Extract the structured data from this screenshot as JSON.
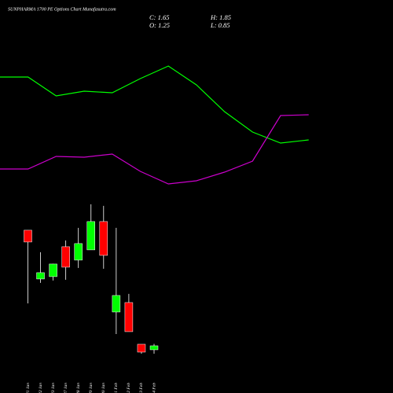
{
  "chart_data": [
    {
      "type": "line",
      "title": "SUNPHARMA 1700 PE Options Chart Munafasutra.com",
      "summary": [
        "C: 1.65",
        "H: 1.85",
        "O: 1.25",
        "L: 0.85"
      ],
      "categories": [
        null,
        null,
        null,
        null,
        null,
        null,
        null,
        null,
        null,
        null,
        null,
        null
      ],
      "ylim": [
        0,
        100
      ],
      "series": [
        {
          "color": "#00ff00",
          "values": [
            60.8,
            60.8,
            51.2,
            53.6,
            52.8,
            60,
            66.4,
            56.8,
            43.2,
            32.8,
            27.2,
            28.8
          ]
        },
        {
          "color": "#cc00cc",
          "values": [
            14,
            14,
            20.4,
            20,
            21.6,
            12.8,
            6.4,
            8,
            12.4,
            18,
            41.2,
            41.6
          ]
        }
      ]
    },
    {
      "type": "candlestick",
      "categories": [
        "21 Jan",
        "22 Jan",
        "23 Jan",
        "27 Jan",
        "28 Jan",
        "29 Jan",
        "30 Jan",
        "01 Feb",
        "02 Feb",
        "03 Feb",
        "04 Feb"
      ],
      "open": [
        13.41,
        8.45,
        8.69,
        11.73,
        10.37,
        11.41,
        14.29,
        5.09,
        6.05,
        1.81,
        1.25
      ],
      "high": [
        13.41,
        11.17,
        10.0,
        12.37,
        13.65,
        16.05,
        15.89,
        13.65,
        6.93,
        1.81,
        1.85
      ],
      "low": [
        5.97,
        8.05,
        8.29,
        8.37,
        9.57,
        11.41,
        9.49,
        2.85,
        3.09,
        0.85,
        0.85
      ],
      "close": [
        12.21,
        9.09,
        9.97,
        9.65,
        12.05,
        14.29,
        10.85,
        6.77,
        3.09,
        1.01,
        1.65
      ],
      "up_color": "#00ff00",
      "down_color": "#ff0000",
      "ylim": [
        0,
        17
      ]
    }
  ]
}
